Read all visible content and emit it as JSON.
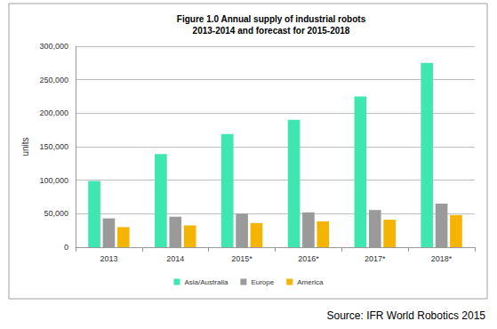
{
  "chart_data": {
    "type": "bar",
    "title": "Figure 1.0 Annual supply of industrial robots\n2013-2014 and forecast for 2015-2018",
    "y_label": "units",
    "annotation": "Source: IFR World Robotics 2015",
    "categories": [
      "2013",
      "2014",
      "2015*",
      "2016*",
      "2017*",
      "2018*"
    ],
    "series": [
      {
        "name": "Asia/Australia",
        "color": "#3ee6b0",
        "values": [
          99000,
          139000,
          169000,
          190000,
          225000,
          275000
        ]
      },
      {
        "name": "Europe",
        "color": "#9a9a9a",
        "values": [
          43000,
          45500,
          50000,
          52000,
          55500,
          65000
        ]
      },
      {
        "name": "America",
        "color": "#f5b400",
        "values": [
          30000,
          32500,
          36000,
          38500,
          41000,
          48000
        ]
      }
    ],
    "ylim": [
      0,
      300000
    ],
    "yticks": [
      0,
      {
        "value": 50000,
        "label": "50,000"
      },
      {
        "value": 100000,
        "label": "100,000"
      },
      {
        "value": 150000,
        "label": "150,000"
      },
      {
        "value": 200000,
        "label": "200,000"
      },
      {
        "value": 250000,
        "label": "250,000"
      },
      {
        "value": 300000,
        "label": "300,000"
      }
    ],
    "grid": true,
    "legend": "bottom"
  }
}
